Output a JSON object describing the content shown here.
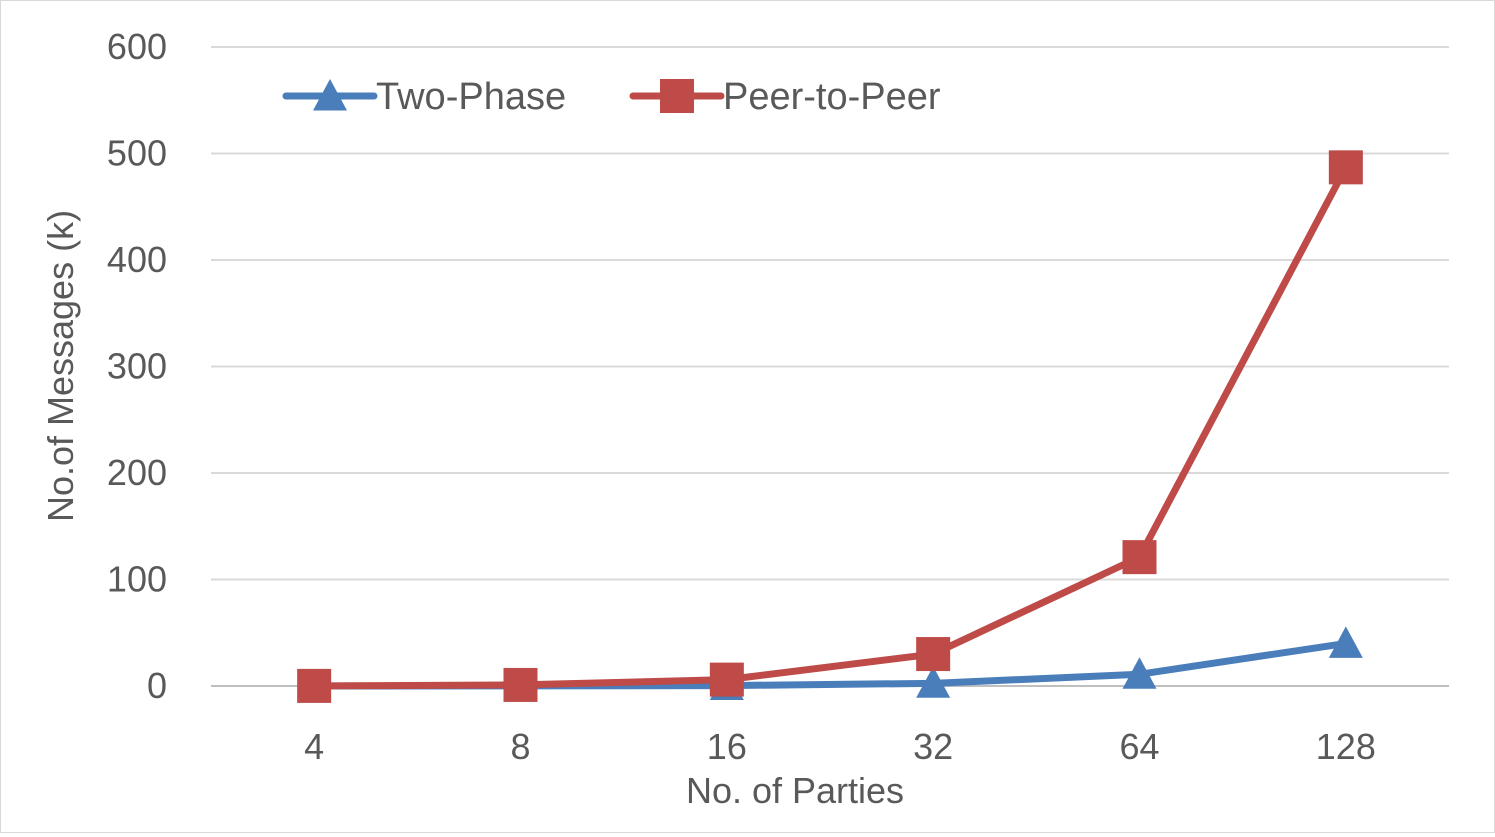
{
  "chart_data": {
    "type": "line",
    "title": "",
    "xlabel": "No. of Parties",
    "ylabel": "No.of Messages (k)",
    "categories": [
      "4",
      "8",
      "16",
      "32",
      "64",
      "128"
    ],
    "ylim": [
      0,
      600
    ],
    "yticks": [
      0,
      100,
      200,
      300,
      400,
      500,
      600
    ],
    "grid": "horizontal",
    "legend_position": "top-left",
    "series": [
      {
        "name": "Two-Phase",
        "color": "#4A7EBB",
        "marker": "triangle",
        "values": [
          0.02,
          0.1,
          0.4,
          2.5,
          11,
          40
        ]
      },
      {
        "name": "Peer-to-Peer",
        "color": "#BE4B48",
        "marker": "square",
        "values": [
          0.1,
          1,
          6,
          30,
          121,
          487
        ]
      }
    ]
  }
}
